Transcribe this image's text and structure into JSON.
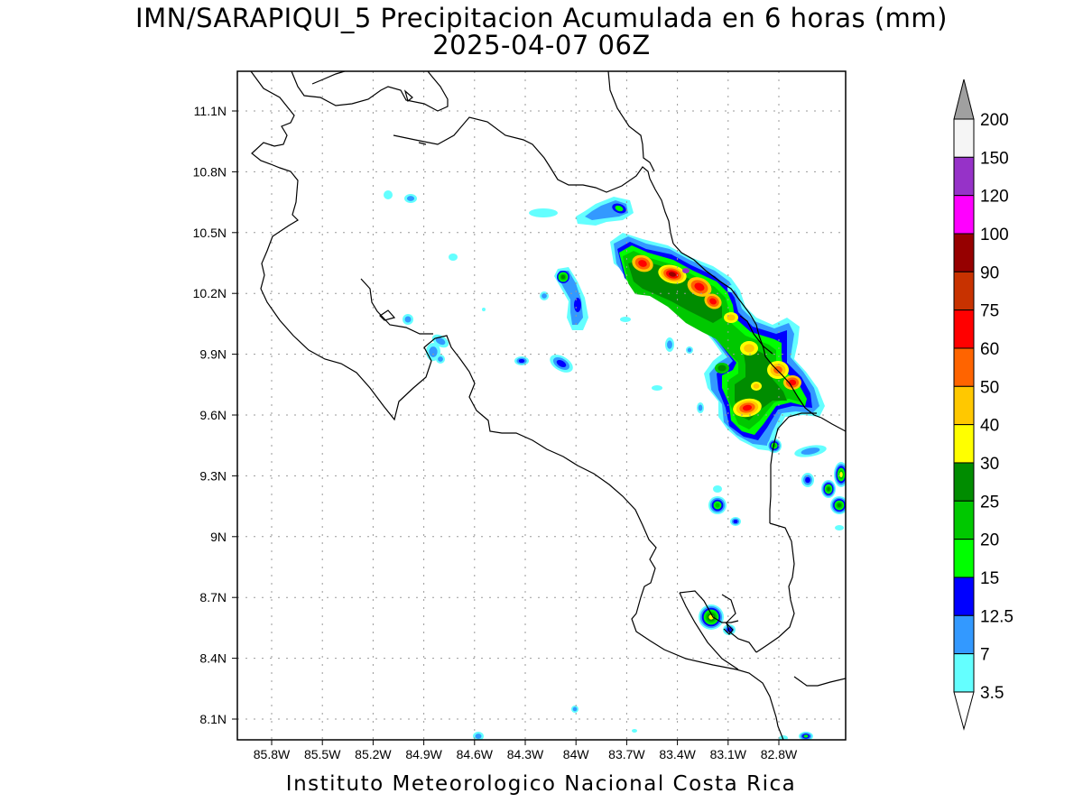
{
  "title": "IMN/SARAPIQUI_5 Precipitacion Acumulada en 6 horas (mm)",
  "subtitle": "2025-04-07 06Z",
  "footer": "Instituto Meteorologico Nacional Costa Rica",
  "chart_data": {
    "type": "heatmap",
    "x_ticks": [
      "85.8W",
      "85.5W",
      "85.2W",
      "84.9W",
      "84.6W",
      "84.3W",
      "84W",
      "83.7W",
      "83.4W",
      "83.1W",
      "82.8W"
    ],
    "y_ticks": [
      "11.1N",
      "10.8N",
      "10.5N",
      "10.2N",
      "9.9N",
      "9.6N",
      "9.3N",
      "9N",
      "8.7N",
      "8.4N",
      "8.1N"
    ],
    "grid": true,
    "legend_placement": "right",
    "colorbar": {
      "labels": [
        "3.5",
        "7",
        "12.5",
        "15",
        "20",
        "25",
        "30",
        "40",
        "50",
        "60",
        "75",
        "90",
        "100",
        "120",
        "150",
        "200"
      ],
      "colors": [
        "#64ffff",
        "#3399ff",
        "#0000ff",
        "#00ff00",
        "#00c800",
        "#008c00",
        "#ffff00",
        "#ffc800",
        "#ff6400",
        "#ff0000",
        "#c83200",
        "#960000",
        "#ff00ff",
        "#9632c8",
        "#f5f5f5"
      ],
      "over_color": "#a0a0a0",
      "under_color": "#ffffff"
    }
  }
}
